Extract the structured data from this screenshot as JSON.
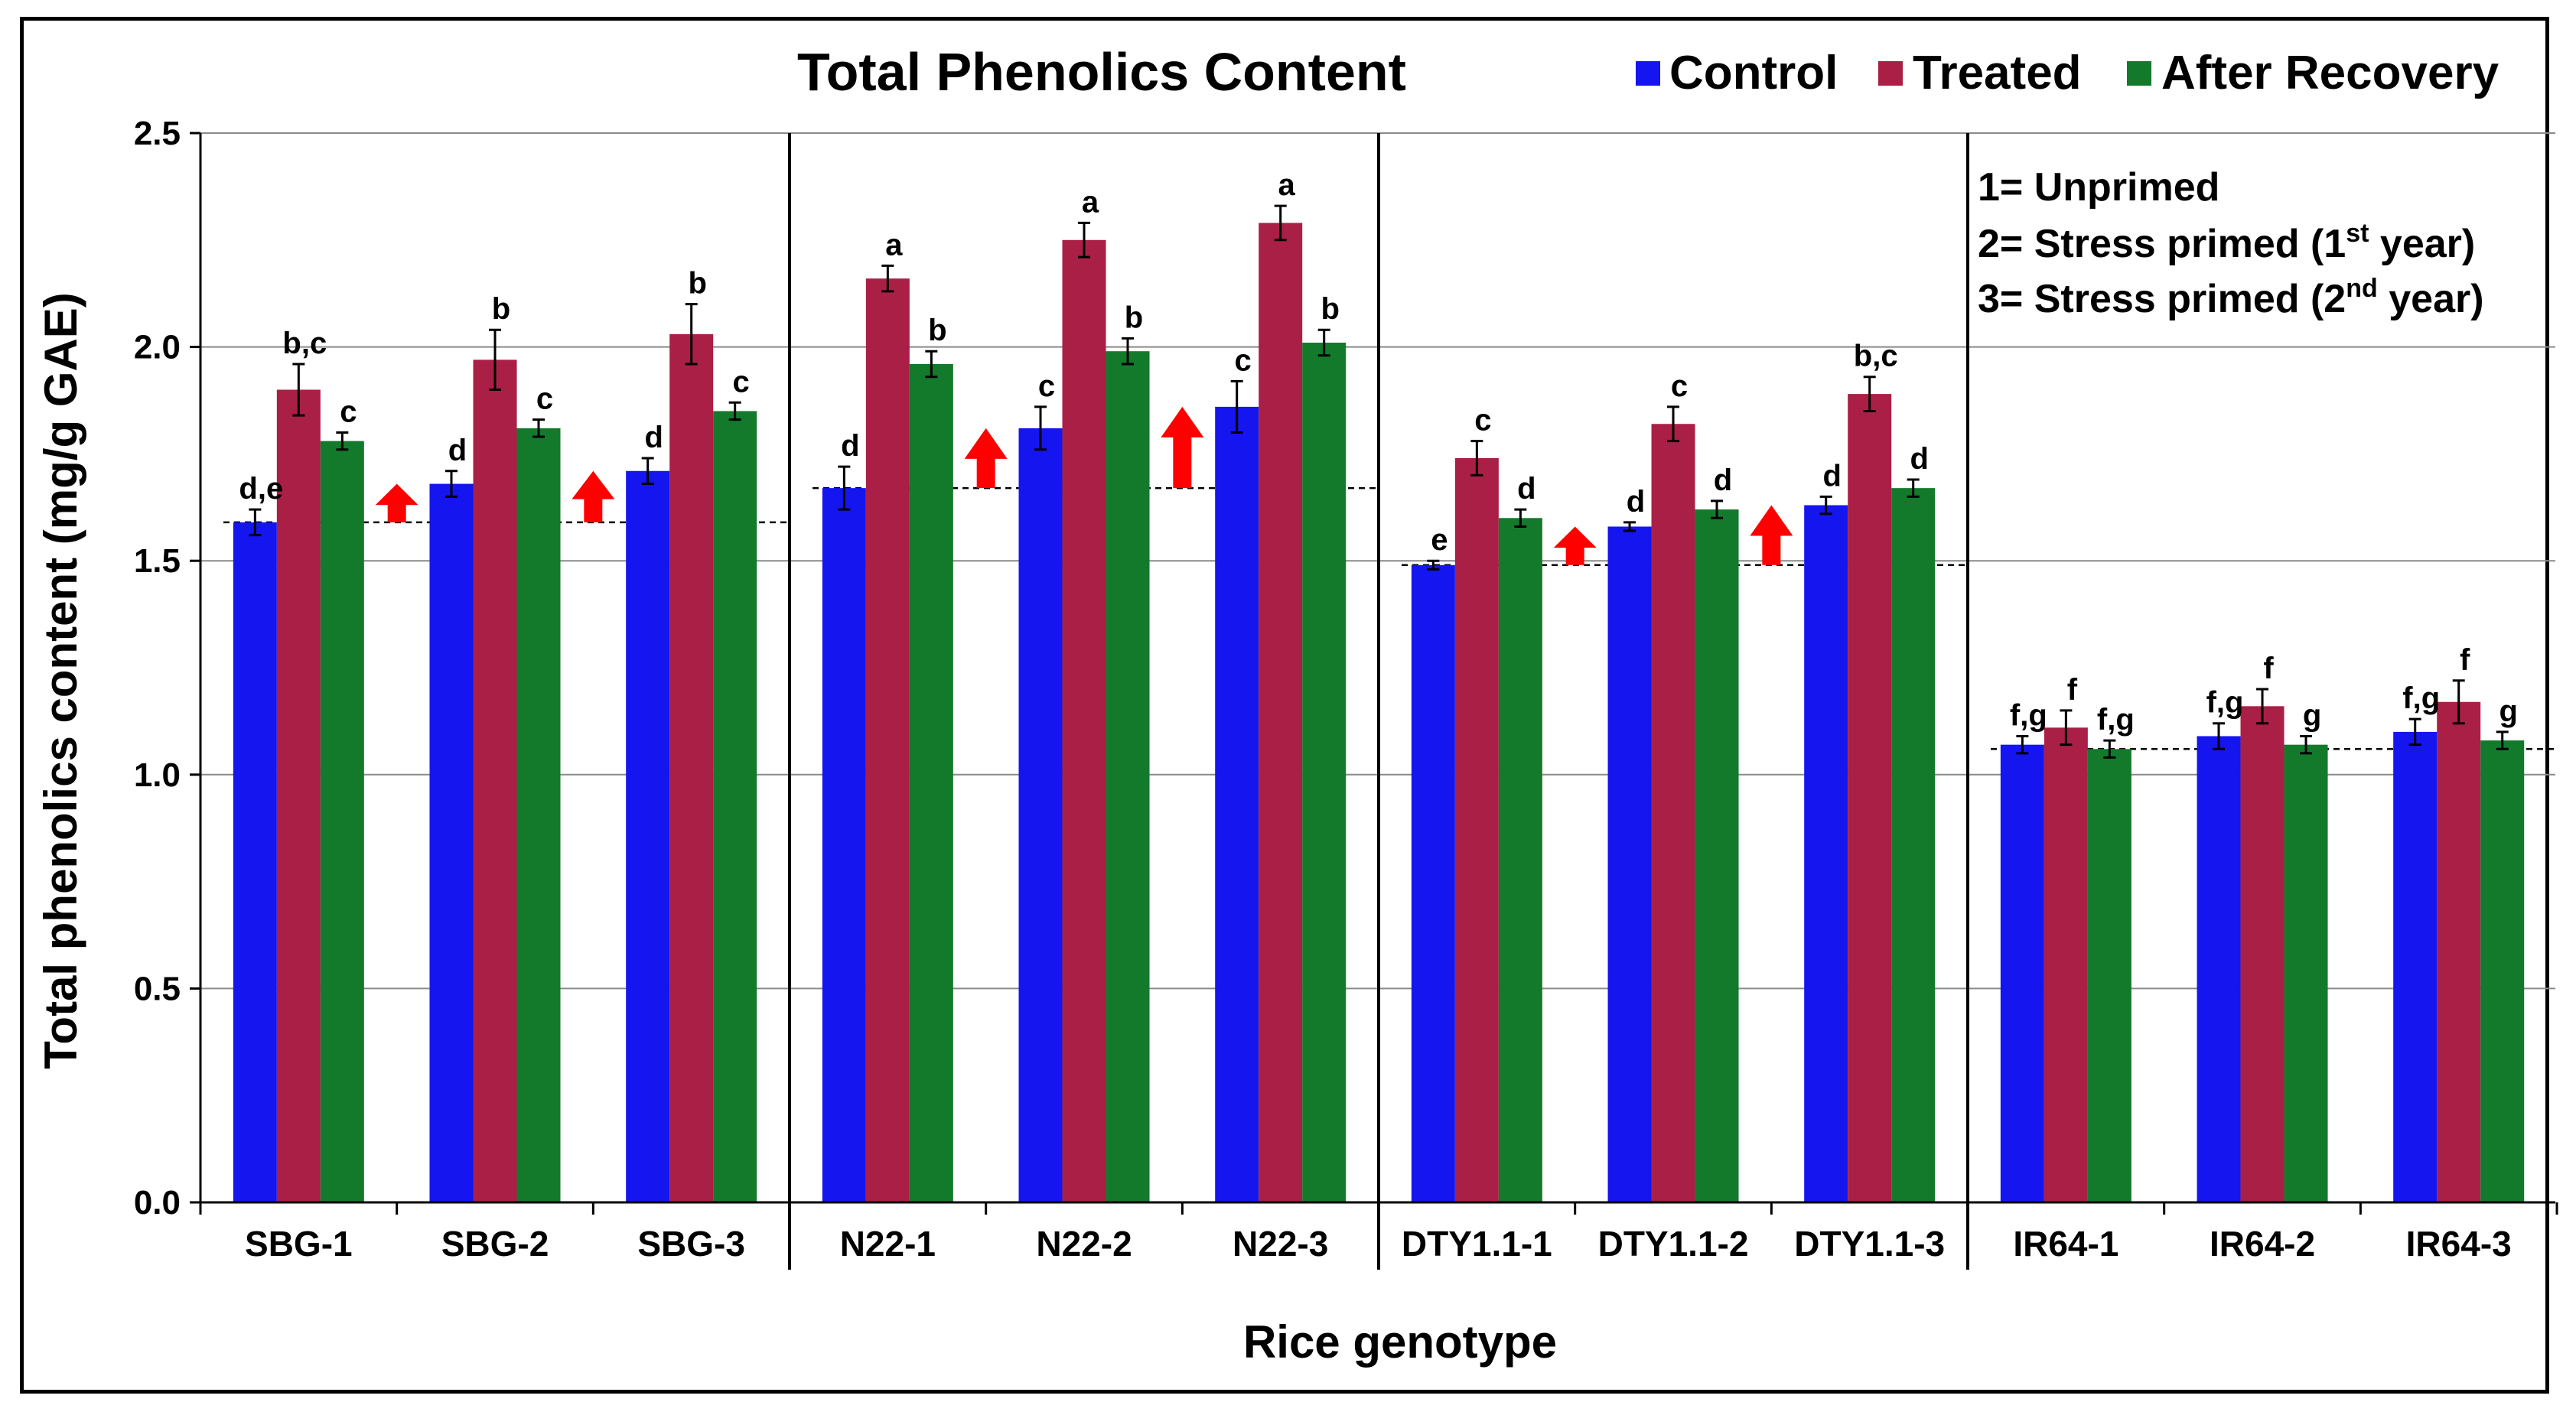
{
  "chart_data": {
    "type": "bar",
    "title": "Total Phenolics Content",
    "xlabel": "Rice genotype",
    "ylabel": "Total phenolics content (mg/g GAE)",
    "ylim": [
      0,
      2.5
    ],
    "yticks": [
      0.0,
      0.5,
      1.0,
      1.5,
      2.0,
      2.5
    ],
    "ytick_labels": [
      "0.0",
      "0.5",
      "1.0",
      "1.5",
      "2.0",
      "2.5"
    ],
    "grid": true,
    "legend_position": "top-right",
    "categories": [
      "SBG-1",
      "SBG-2",
      "SBG-3",
      "N22-1",
      "N22-2",
      "N22-3",
      "DTY1.1-1",
      "DTY1.1-2",
      "DTY1.1-3",
      "IR64-1",
      "IR64-2",
      "IR64-3"
    ],
    "groups": [
      {
        "name": "SBG",
        "categories": [
          0,
          1,
          2
        ],
        "baseline": 1.59
      },
      {
        "name": "N22",
        "categories": [
          3,
          4,
          5
        ],
        "baseline": 1.67
      },
      {
        "name": "DTY1.1",
        "categories": [
          6,
          7,
          8
        ],
        "baseline": 1.49
      },
      {
        "name": "IR64",
        "categories": [
          9,
          10,
          11
        ],
        "baseline": 1.06
      }
    ],
    "series": [
      {
        "name": "Control",
        "color": "#1515F0",
        "values": [
          1.59,
          1.68,
          1.71,
          1.67,
          1.81,
          1.86,
          1.49,
          1.58,
          1.63,
          1.07,
          1.09,
          1.1
        ],
        "errors": [
          0.03,
          0.03,
          0.03,
          0.05,
          0.05,
          0.06,
          0.01,
          0.01,
          0.02,
          0.02,
          0.03,
          0.03
        ],
        "labels": [
          "d,e",
          "d",
          "d",
          "d",
          "c",
          "c",
          "e",
          "d",
          "d",
          "f,g",
          "f,g",
          "f,g"
        ]
      },
      {
        "name": "Treated",
        "color": "#AA1F45",
        "values": [
          1.9,
          1.97,
          2.03,
          2.16,
          2.25,
          2.29,
          1.74,
          1.82,
          1.89,
          1.11,
          1.16,
          1.17
        ],
        "errors": [
          0.06,
          0.07,
          0.07,
          0.03,
          0.04,
          0.04,
          0.04,
          0.04,
          0.04,
          0.04,
          0.04,
          0.05
        ],
        "labels": [
          "b,c",
          "b",
          "b",
          "a",
          "a",
          "a",
          "c",
          "c",
          "b,c",
          "f",
          "f",
          "f"
        ]
      },
      {
        "name": "After Recovery",
        "color": "#137A2C",
        "values": [
          1.78,
          1.81,
          1.85,
          1.96,
          1.99,
          2.01,
          1.6,
          1.62,
          1.67,
          1.06,
          1.07,
          1.08
        ],
        "errors": [
          0.02,
          0.02,
          0.02,
          0.03,
          0.03,
          0.03,
          0.02,
          0.02,
          0.02,
          0.02,
          0.02,
          0.02
        ],
        "labels": [
          "c",
          "c",
          "c",
          "b",
          "b",
          "b",
          "d",
          "d",
          "d",
          "f,g",
          "g",
          "g"
        ]
      }
    ],
    "priming_arrows": [
      {
        "category": 1,
        "from": 1.59,
        "to": 1.68
      },
      {
        "category": 2,
        "from": 1.59,
        "to": 1.71
      },
      {
        "category": 4,
        "from": 1.67,
        "to": 1.81
      },
      {
        "category": 5,
        "from": 1.67,
        "to": 1.86
      },
      {
        "category": 7,
        "from": 1.49,
        "to": 1.58
      },
      {
        "category": 8,
        "from": 1.49,
        "to": 1.63
      }
    ],
    "arrow_color": "#FF0000",
    "annotations": {
      "line1": "1= Unprimed",
      "line2_prefix": "2= Stress primed (1",
      "line2_sup": "st",
      "line2_suffix": " year)",
      "line3_prefix": "3= Stress primed (2",
      "line3_sup": "nd",
      "line3_suffix": " year)"
    }
  }
}
